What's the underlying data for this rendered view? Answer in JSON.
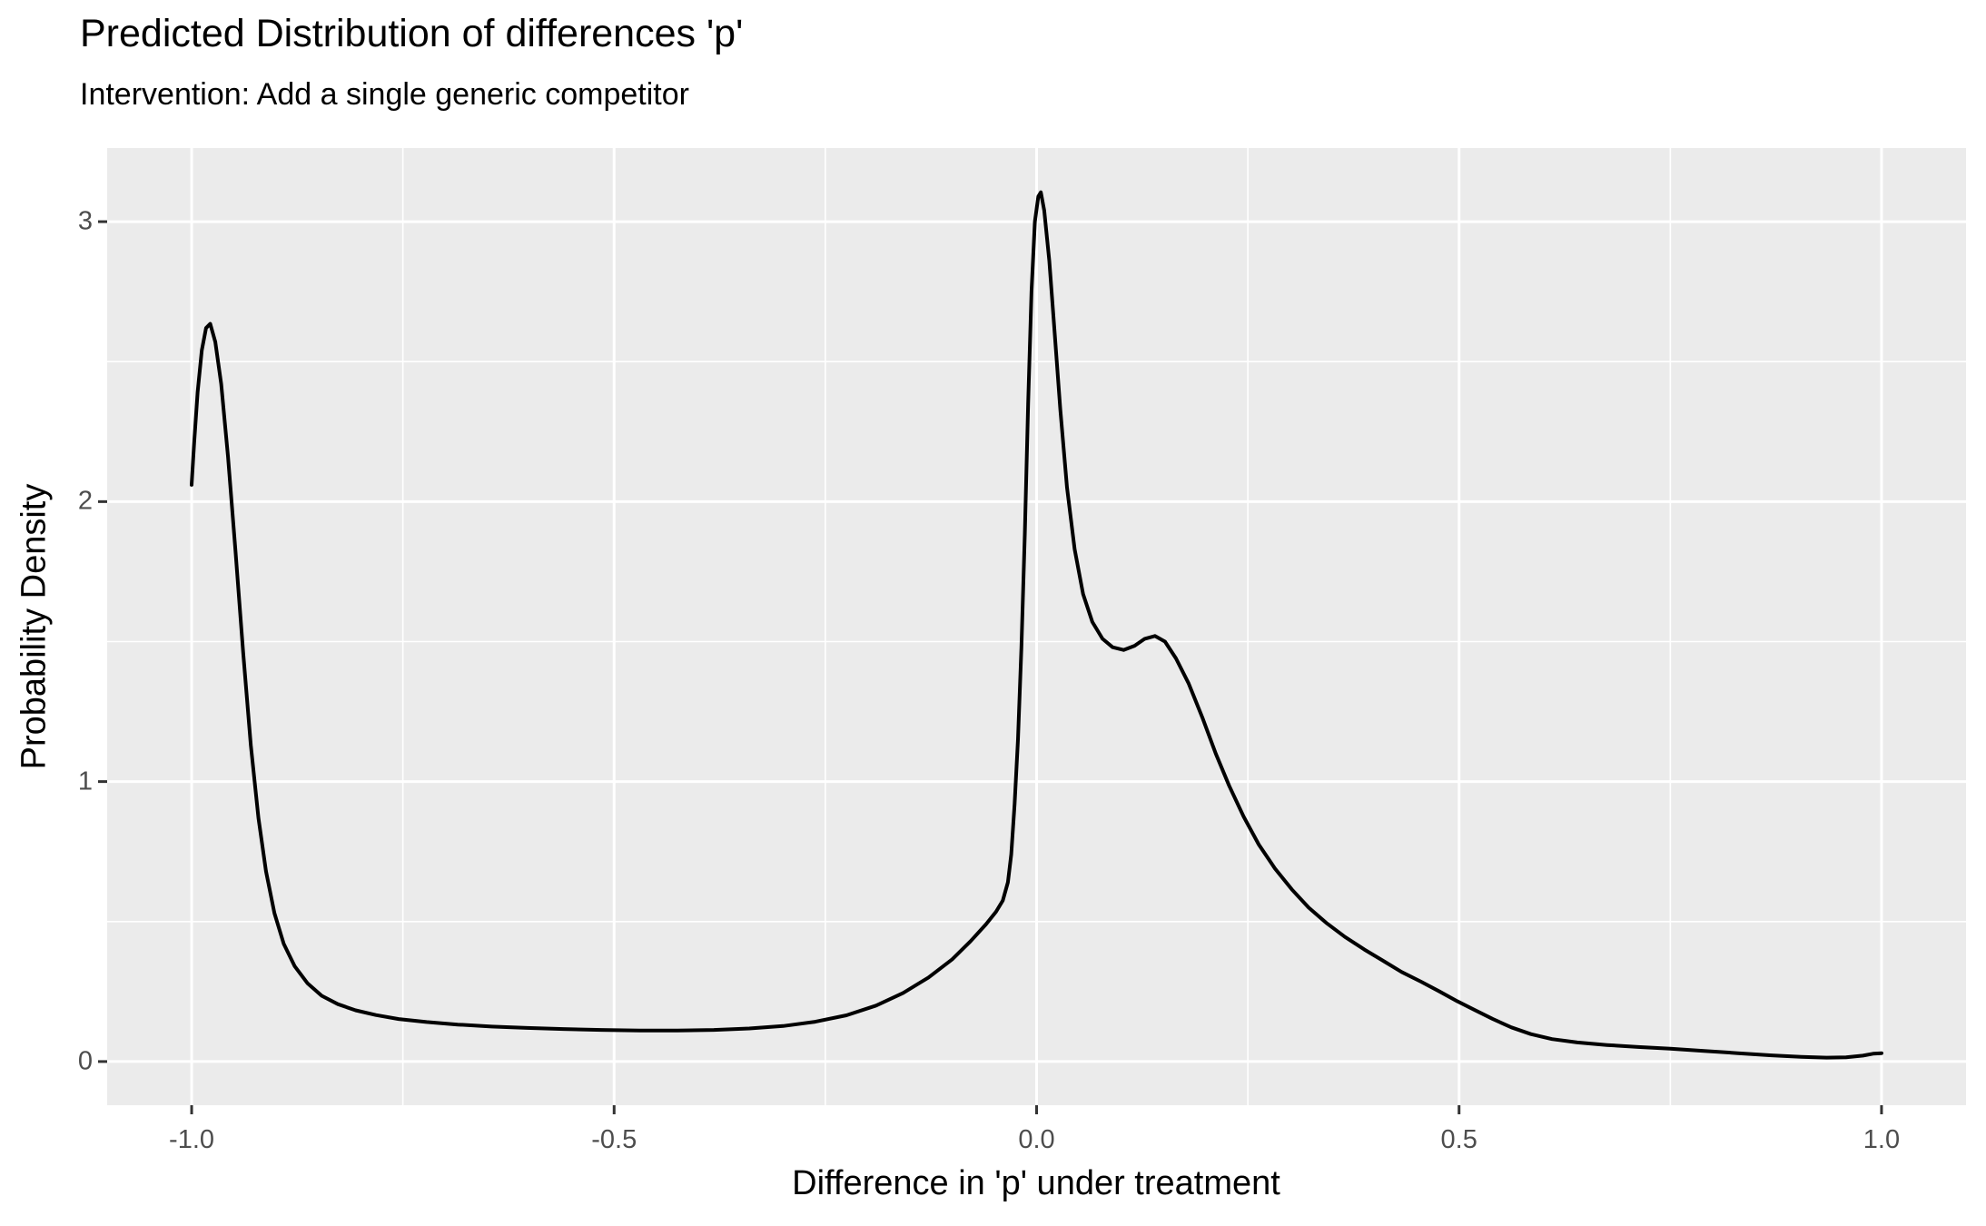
{
  "chart_data": {
    "type": "line",
    "variant": "density-curve",
    "title": "Predicted Distribution of differences 'p'",
    "subtitle": "Intervention: Add a single generic competitor",
    "xlabel": "Difference in 'p' under treatment",
    "ylabel": "Probability Density",
    "x_ticks": [
      -1.0,
      -0.5,
      0.0,
      0.5,
      1.0
    ],
    "x_tick_labels": [
      "-1.0",
      "-0.5",
      "0.0",
      "0.5",
      "1.0"
    ],
    "y_ticks": [
      0,
      1,
      2,
      3
    ],
    "y_tick_labels": [
      "0",
      "1",
      "2",
      "3"
    ],
    "xlim": [
      -1.1,
      1.1
    ],
    "ylim": [
      -0.156,
      3.263
    ],
    "grid": {
      "major": true,
      "minor": true,
      "gridline_color": "#FFFFFF"
    },
    "legend_position": "none",
    "colors": {
      "line": "#000000",
      "panel_background": "#EBEBEB",
      "tick_text": "#4D4D4D",
      "tick_mark": "#333333",
      "title_text": "#000000"
    },
    "series": [
      {
        "name": "density of difference in p under treatment",
        "points": [
          [
            -1.0,
            2.06
          ],
          [
            -0.997,
            2.21
          ],
          [
            -0.993,
            2.39
          ],
          [
            -0.988,
            2.54
          ],
          [
            -0.983,
            2.62
          ],
          [
            -0.978,
            2.635
          ],
          [
            -0.972,
            2.57
          ],
          [
            -0.965,
            2.42
          ],
          [
            -0.957,
            2.16
          ],
          [
            -0.948,
            1.82
          ],
          [
            -0.939,
            1.46
          ],
          [
            -0.93,
            1.13
          ],
          [
            -0.921,
            0.87
          ],
          [
            -0.912,
            0.68
          ],
          [
            -0.902,
            0.53
          ],
          [
            -0.891,
            0.42
          ],
          [
            -0.878,
            0.34
          ],
          [
            -0.863,
            0.28
          ],
          [
            -0.846,
            0.235
          ],
          [
            -0.827,
            0.205
          ],
          [
            -0.806,
            0.183
          ],
          [
            -0.782,
            0.166
          ],
          [
            -0.755,
            0.152
          ],
          [
            -0.722,
            0.141
          ],
          [
            -0.685,
            0.132
          ],
          [
            -0.645,
            0.125
          ],
          [
            -0.603,
            0.12
          ],
          [
            -0.56,
            0.116
          ],
          [
            -0.515,
            0.113
          ],
          [
            -0.47,
            0.111
          ],
          [
            -0.425,
            0.111
          ],
          [
            -0.382,
            0.113
          ],
          [
            -0.34,
            0.118
          ],
          [
            -0.3,
            0.127
          ],
          [
            -0.262,
            0.142
          ],
          [
            -0.225,
            0.165
          ],
          [
            -0.19,
            0.2
          ],
          [
            -0.158,
            0.245
          ],
          [
            -0.128,
            0.3
          ],
          [
            -0.1,
            0.365
          ],
          [
            -0.078,
            0.43
          ],
          [
            -0.06,
            0.49
          ],
          [
            -0.048,
            0.535
          ],
          [
            -0.04,
            0.575
          ],
          [
            -0.034,
            0.64
          ],
          [
            -0.03,
            0.74
          ],
          [
            -0.026,
            0.92
          ],
          [
            -0.022,
            1.15
          ],
          [
            -0.018,
            1.48
          ],
          [
            -0.014,
            1.88
          ],
          [
            -0.01,
            2.35
          ],
          [
            -0.006,
            2.75
          ],
          [
            -0.002,
            3.0
          ],
          [
            0.002,
            3.09
          ],
          [
            0.005,
            3.105
          ],
          [
            0.009,
            3.04
          ],
          [
            0.015,
            2.86
          ],
          [
            0.021,
            2.62
          ],
          [
            0.028,
            2.33
          ],
          [
            0.036,
            2.05
          ],
          [
            0.045,
            1.83
          ],
          [
            0.055,
            1.67
          ],
          [
            0.066,
            1.57
          ],
          [
            0.078,
            1.51
          ],
          [
            0.09,
            1.48
          ],
          [
            0.103,
            1.47
          ],
          [
            0.116,
            1.485
          ],
          [
            0.128,
            1.51
          ],
          [
            0.14,
            1.52
          ],
          [
            0.152,
            1.5
          ],
          [
            0.165,
            1.44
          ],
          [
            0.18,
            1.35
          ],
          [
            0.196,
            1.23
          ],
          [
            0.212,
            1.1
          ],
          [
            0.228,
            0.985
          ],
          [
            0.245,
            0.875
          ],
          [
            0.263,
            0.775
          ],
          [
            0.282,
            0.69
          ],
          [
            0.302,
            0.615
          ],
          [
            0.322,
            0.55
          ],
          [
            0.343,
            0.495
          ],
          [
            0.365,
            0.445
          ],
          [
            0.388,
            0.4
          ],
          [
            0.41,
            0.36
          ],
          [
            0.432,
            0.32
          ],
          [
            0.455,
            0.285
          ],
          [
            0.477,
            0.25
          ],
          [
            0.498,
            0.215
          ],
          [
            0.518,
            0.185
          ],
          [
            0.54,
            0.152
          ],
          [
            0.562,
            0.122
          ],
          [
            0.585,
            0.098
          ],
          [
            0.61,
            0.08
          ],
          [
            0.64,
            0.068
          ],
          [
            0.675,
            0.059
          ],
          [
            0.712,
            0.052
          ],
          [
            0.75,
            0.046
          ],
          [
            0.79,
            0.038
          ],
          [
            0.83,
            0.03
          ],
          [
            0.87,
            0.022
          ],
          [
            0.905,
            0.017
          ],
          [
            0.935,
            0.014
          ],
          [
            0.958,
            0.015
          ],
          [
            0.978,
            0.021
          ],
          [
            0.99,
            0.028
          ],
          [
            1.0,
            0.03
          ]
        ]
      }
    ]
  }
}
